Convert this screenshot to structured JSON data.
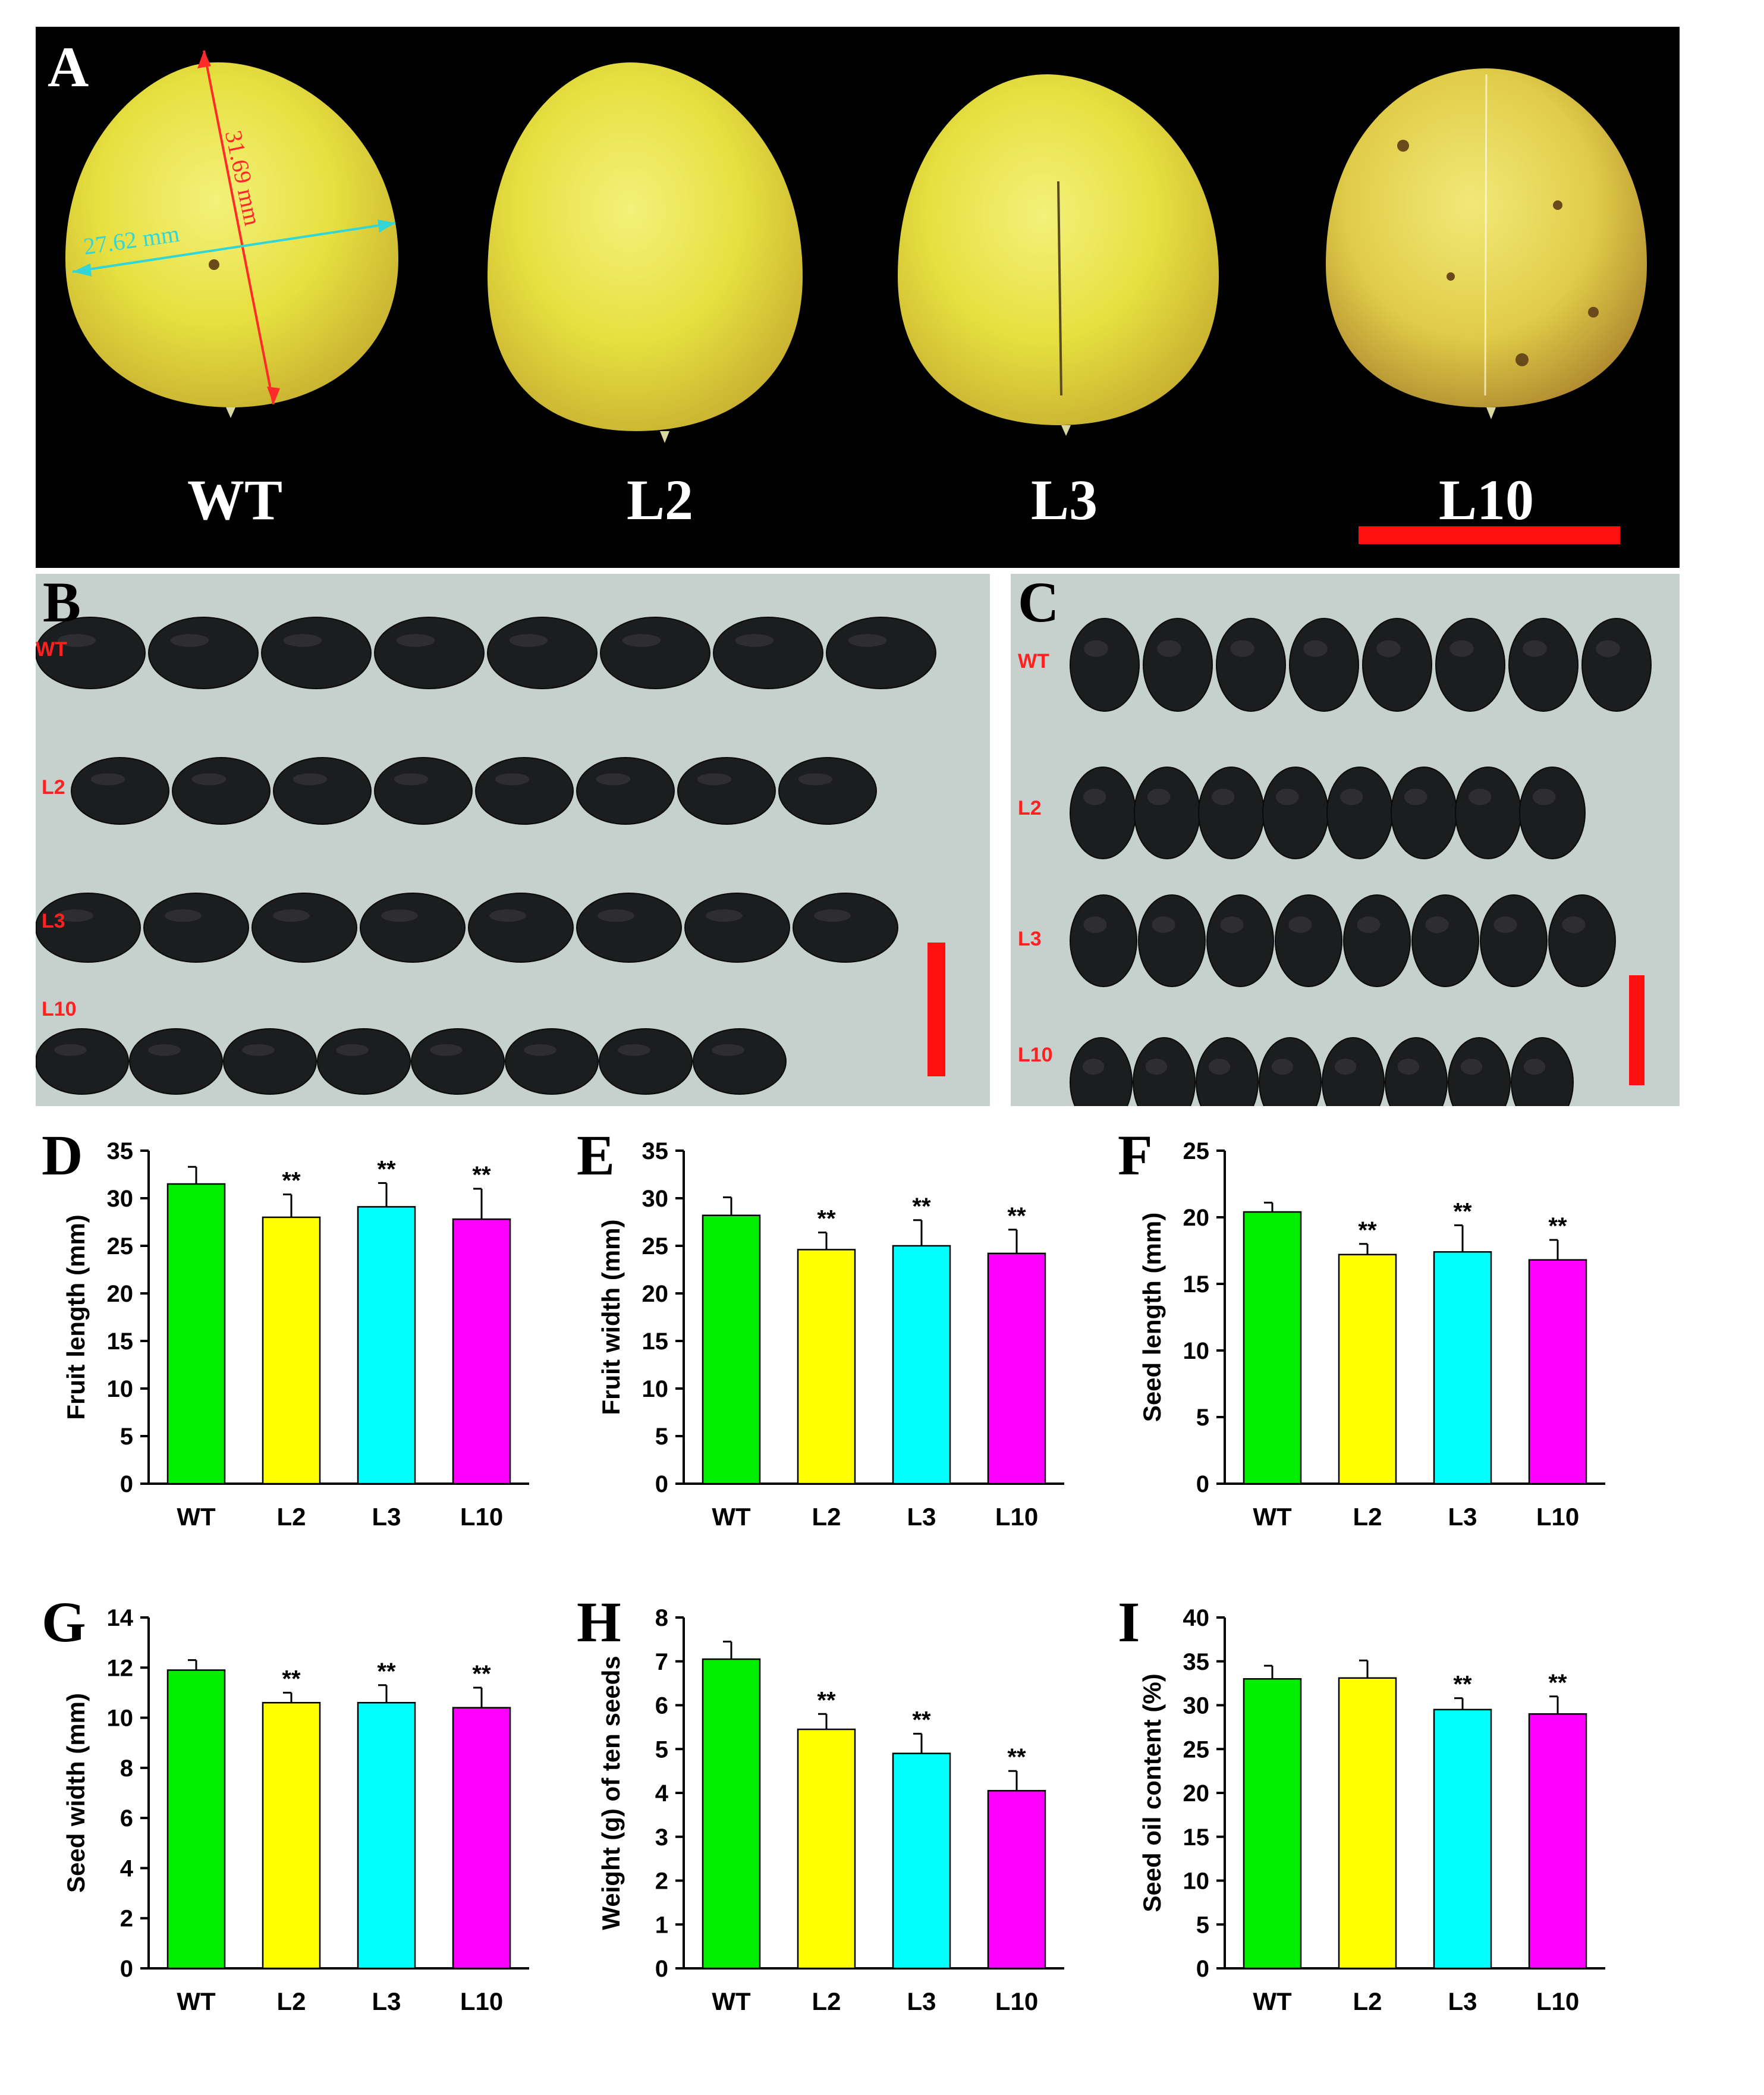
{
  "figure": {
    "panel_a": {
      "letter": "A",
      "fruits": [
        "WT",
        "L2",
        "L3",
        "L10"
      ],
      "length_label": "31.69 mm",
      "width_label": "27.62 mm",
      "colors": {
        "background": "#000000",
        "fruit": "#e8e34a",
        "length_arrow": "#ff2a2a",
        "width_arrow": "#33d6d6",
        "scale_bar": "#ff1a1a"
      }
    },
    "panel_b": {
      "letter": "B",
      "rows": [
        {
          "label": "WT",
          "count": 8
        },
        {
          "label": "L2",
          "count": 8
        },
        {
          "label": "L3",
          "count": 8
        },
        {
          "label": "L10",
          "count": 8
        }
      ]
    },
    "panel_c": {
      "letter": "C",
      "rows": [
        {
          "label": "WT",
          "count": 8
        },
        {
          "label": "L2",
          "count": 8
        },
        {
          "label": "L3",
          "count": 8
        },
        {
          "label": "L10",
          "count": 8
        }
      ]
    }
  },
  "chart_data": [
    {
      "letter": "D",
      "type": "bar",
      "categories": [
        "WT",
        "L2",
        "L3",
        "L10"
      ],
      "values": [
        31.5,
        28.0,
        29.1,
        27.8
      ],
      "errors": [
        1.8,
        2.4,
        2.5,
        3.2
      ],
      "significance": [
        "",
        "**",
        "**",
        "**"
      ],
      "ylabel": "Fruit length (mm)",
      "ylim": [
        0,
        35
      ],
      "yticks": [
        0,
        5,
        10,
        15,
        20,
        25,
        30,
        35
      ]
    },
    {
      "letter": "E",
      "type": "bar",
      "categories": [
        "WT",
        "L2",
        "L3",
        "L10"
      ],
      "values": [
        28.2,
        24.6,
        25.0,
        24.2
      ],
      "errors": [
        1.9,
        1.8,
        2.7,
        2.5
      ],
      "significance": [
        "",
        "**",
        "**",
        "**"
      ],
      "ylabel": "Fruit width (mm)",
      "ylim": [
        0,
        35
      ],
      "yticks": [
        0,
        5,
        10,
        15,
        20,
        25,
        30,
        35
      ]
    },
    {
      "letter": "F",
      "type": "bar",
      "categories": [
        "WT",
        "L2",
        "L3",
        "L10"
      ],
      "values": [
        20.4,
        17.2,
        17.4,
        16.8
      ],
      "errors": [
        0.7,
        0.8,
        2.0,
        1.5
      ],
      "significance": [
        "",
        "**",
        "**",
        "**"
      ],
      "ylabel": "Seed length (mm)",
      "ylim": [
        0,
        25
      ],
      "yticks": [
        0,
        5,
        10,
        15,
        20,
        25
      ]
    },
    {
      "letter": "G",
      "type": "bar",
      "categories": [
        "WT",
        "L2",
        "L3",
        "L10"
      ],
      "values": [
        11.9,
        10.6,
        10.6,
        10.4
      ],
      "errors": [
        0.4,
        0.4,
        0.7,
        0.8
      ],
      "significance": [
        "",
        "**",
        "**",
        "**"
      ],
      "ylabel": "Seed width (mm)",
      "ylim": [
        0,
        14
      ],
      "yticks": [
        0,
        2,
        4,
        6,
        8,
        10,
        12,
        14
      ]
    },
    {
      "letter": "H",
      "type": "bar",
      "categories": [
        "WT",
        "L2",
        "L3",
        "L10"
      ],
      "values": [
        7.05,
        5.45,
        4.9,
        4.05
      ],
      "errors": [
        0.4,
        0.35,
        0.45,
        0.45
      ],
      "significance": [
        "",
        "**",
        "**",
        "**"
      ],
      "ylabel": "Weight (g) of ten seeds",
      "ylim": [
        0,
        8
      ],
      "yticks": [
        0,
        1,
        2,
        3,
        4,
        5,
        6,
        7,
        8
      ]
    },
    {
      "letter": "I",
      "type": "bar",
      "categories": [
        "WT",
        "L2",
        "L3",
        "L10"
      ],
      "values": [
        33.0,
        33.1,
        29.5,
        29.0
      ],
      "errors": [
        1.5,
        2.0,
        1.3,
        2.0
      ],
      "significance": [
        "",
        "",
        "**",
        "**"
      ],
      "ylabel": "Seed oil content (%)",
      "ylim": [
        0,
        40
      ],
      "yticks": [
        0,
        5,
        10,
        15,
        20,
        25,
        30,
        35,
        40
      ]
    }
  ],
  "bar_colors": [
    "#00ee00",
    "#ffff00",
    "#00ffff",
    "#ff00ff"
  ]
}
